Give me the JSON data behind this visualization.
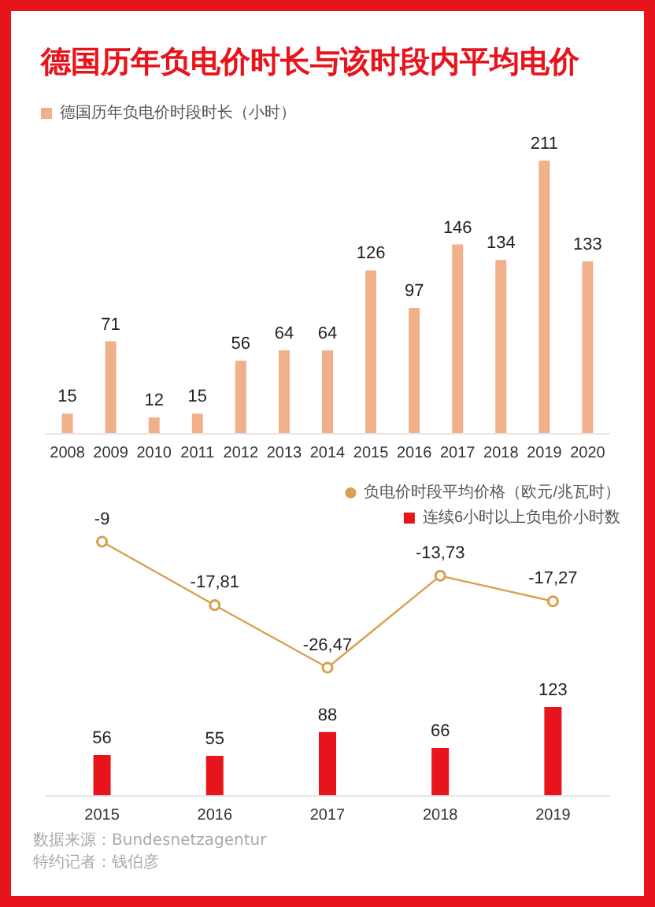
{
  "chart_data": [
    {
      "type": "bar",
      "title": "德国历年负电价时长与该时段内平均电价",
      "categories": [
        "2008",
        "2009",
        "2010",
        "2011",
        "2012",
        "2013",
        "2014",
        "2015",
        "2016",
        "2017",
        "2018",
        "2019",
        "2020"
      ],
      "series": [
        {
          "name": "德国历年负电价时段时长（小时）",
          "color": "#f0b08a",
          "values": [
            15,
            71,
            12,
            15,
            56,
            64,
            64,
            126,
            97,
            146,
            134,
            211,
            133
          ]
        }
      ],
      "data_labels": true,
      "legend": "top left",
      "tick_labels": "x"
    },
    {
      "type": "bar",
      "categories": [
        "2015",
        "2016",
        "2017",
        "2018",
        "2019"
      ],
      "series": [
        {
          "name": "连续6小时以上负电价小时数",
          "color": "#e8141b",
          "values": [
            56,
            55,
            88,
            66,
            123
          ]
        }
      ],
      "data_labels": true,
      "legend": "top right",
      "tick_labels": "x",
      "annotations": [
        "数据来源：Bundesnetzagentur",
        "特约记者：钱伯彦"
      ]
    },
    {
      "type": "line",
      "categories": [
        "2015",
        "2016",
        "2017",
        "2018",
        "2019"
      ],
      "series": [
        {
          "name": "负电价时段平均价格（欧元/兆瓦时）",
          "color": "#d9a050",
          "values": [
            -9,
            -17.81,
            -26.47,
            -13.73,
            -17.27
          ],
          "value_labels": [
            "-9",
            "-17,81",
            "-26,47",
            "-13,73",
            "-17,27"
          ]
        }
      ],
      "legend": "top right",
      "tick_labels": false,
      "marker": "circle",
      "line_style": "solid"
    }
  ]
}
